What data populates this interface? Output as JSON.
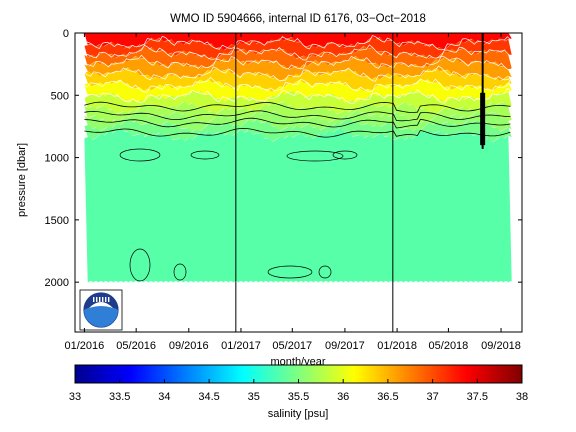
{
  "chart_data": {
    "type": "heatmap",
    "title": "WMO ID 5904666, internal ID 6176, 03−Oct−2018",
    "xlabel": "month/year",
    "ylabel": "pressure [dbar]",
    "xlim": [
      "2015-12-10",
      "2018-10-20"
    ],
    "ylim": [
      0,
      2400
    ],
    "y_reversed": true,
    "x_ticks": [
      "01/2016",
      "05/2016",
      "09/2016",
      "01/2017",
      "05/2017",
      "09/2017",
      "01/2018",
      "05/2018",
      "09/2018"
    ],
    "x_tick_dates": [
      "2016-01-01",
      "2016-05-01",
      "2016-09-01",
      "2017-01-01",
      "2017-05-01",
      "2017-09-01",
      "2018-01-01",
      "2018-05-01",
      "2018-09-01"
    ],
    "y_ticks": [
      0,
      500,
      1000,
      1500,
      2000
    ],
    "data_start": "2016-01-01",
    "data_end": "2018-09-26",
    "vertical_markers": [
      "2016-12-20",
      "2017-12-22"
    ],
    "sampling_line": {
      "date": "2018-07-20",
      "pressure": [
        0,
        930
      ]
    },
    "profile_max_pressure": 2000,
    "salinity_layers": [
      {
        "top": 0,
        "bottom": 80,
        "value": 37.35
      },
      {
        "top": 80,
        "bottom": 160,
        "value": 37.1
      },
      {
        "top": 160,
        "bottom": 240,
        "value": 36.85
      },
      {
        "top": 240,
        "bottom": 330,
        "value": 36.6
      },
      {
        "top": 330,
        "bottom": 420,
        "value": 36.35
      },
      {
        "top": 420,
        "bottom": 510,
        "value": 36.1
      },
      {
        "top": 510,
        "bottom": 600,
        "value": 35.85
      },
      {
        "top": 600,
        "bottom": 670,
        "value": 35.7
      },
      {
        "top": 670,
        "bottom": 740,
        "value": 35.6
      },
      {
        "top": 740,
        "bottom": 820,
        "value": 35.45
      },
      {
        "top": 820,
        "bottom": 2000,
        "value": 35.3
      }
    ],
    "contour_pressures": [
      590,
      660,
      720,
      800
    ],
    "colorbar": {
      "label": "salinity [psu]",
      "ticks": [
        33,
        33.5,
        34,
        34.5,
        35,
        35.5,
        36,
        36.5,
        37,
        37.5,
        38
      ],
      "range": [
        33,
        38
      ],
      "colormap": "jet"
    },
    "logo": "noaa-logo"
  }
}
